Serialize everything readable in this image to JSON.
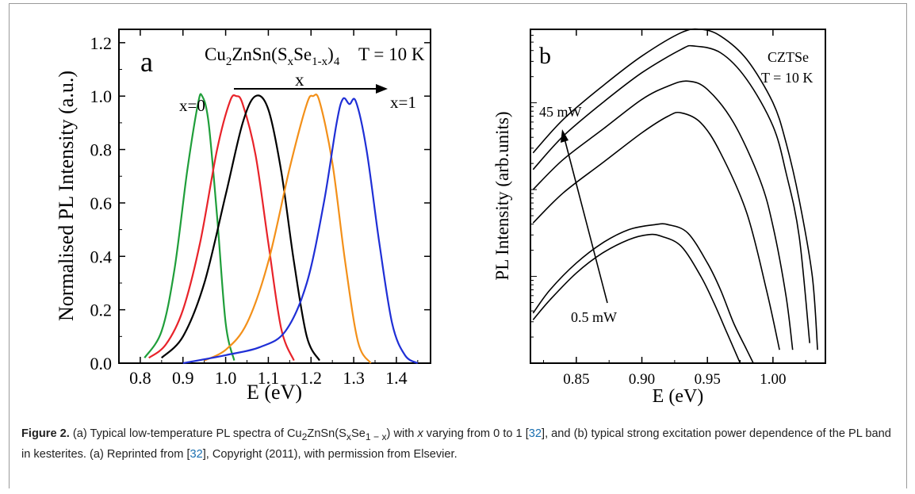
{
  "chart_data": [
    {
      "type": "line",
      "panel_label": "a",
      "title": "Cu2ZnSn(SxSe1-x)4",
      "annotation_temp": "T = 10 K",
      "arrow_label": "x",
      "annotations": [
        "x=0",
        "x=1"
      ],
      "xlabel": "E (eV)",
      "ylabel": "Normalised PL Intensity (a.u.)",
      "xlim": [
        0.75,
        1.48
      ],
      "ylim": [
        0.0,
        1.25
      ],
      "xticks": [
        0.8,
        0.9,
        1.0,
        1.1,
        1.2,
        1.3,
        1.4
      ],
      "yticks": [
        0.0,
        0.2,
        0.4,
        0.6,
        0.8,
        1.0,
        1.2
      ],
      "series": [
        {
          "color": "#1f9e3a",
          "x": [
            0.81,
            0.85,
            0.88,
            0.91,
            0.935,
            0.945,
            0.96,
            0.98,
            1.0,
            1.02
          ],
          "y": [
            0.02,
            0.12,
            0.35,
            0.72,
            0.97,
            1.0,
            0.9,
            0.55,
            0.15,
            0.01
          ]
        },
        {
          "color": "#e8232a",
          "x": [
            0.82,
            0.86,
            0.9,
            0.94,
            0.98,
            1.01,
            1.025,
            1.04,
            1.07,
            1.1,
            1.13,
            1.16
          ],
          "y": [
            0.02,
            0.07,
            0.2,
            0.45,
            0.8,
            0.98,
            1.0,
            0.97,
            0.78,
            0.45,
            0.13,
            0.01
          ]
        },
        {
          "color": "#000000",
          "x": [
            0.85,
            0.9,
            0.95,
            1.0,
            1.04,
            1.07,
            1.1,
            1.13,
            1.16,
            1.19,
            1.22
          ],
          "y": [
            0.02,
            0.1,
            0.3,
            0.63,
            0.9,
            1.0,
            0.95,
            0.72,
            0.38,
            0.1,
            0.01
          ]
        },
        {
          "color": "#f39019",
          "x": [
            0.95,
            1.0,
            1.05,
            1.1,
            1.15,
            1.19,
            1.205,
            1.22,
            1.25,
            1.28,
            1.31,
            1.34
          ],
          "y": [
            0.01,
            0.05,
            0.15,
            0.38,
            0.73,
            0.97,
            1.0,
            0.98,
            0.75,
            0.38,
            0.08,
            0.0
          ]
        },
        {
          "color": "#1f2fd6",
          "x": [
            0.9,
            1.0,
            1.08,
            1.14,
            1.19,
            1.23,
            1.26,
            1.275,
            1.29,
            1.305,
            1.33,
            1.36,
            1.39,
            1.42,
            1.45
          ],
          "y": [
            0.0,
            0.03,
            0.06,
            0.12,
            0.3,
            0.6,
            0.9,
            0.99,
            0.97,
            0.98,
            0.8,
            0.45,
            0.15,
            0.03,
            0.0
          ]
        }
      ]
    },
    {
      "type": "line",
      "panel_label": "b",
      "annotation_material": "CZTSe",
      "annotation_temp": "T = 10 K",
      "arrow_top_label": "45 mW",
      "arrow_bottom_label": "0.5 mW",
      "xlabel": "E (eV)",
      "ylabel": "PL Intensity (arb.units)",
      "xlim": [
        0.815,
        1.04
      ],
      "xticks": [
        0.85,
        0.9,
        0.95,
        1.0
      ],
      "y_scale": "log",
      "ylim": [
        0,
        10
      ],
      "y_tick_labels": "none",
      "series": [
        {
          "x": [
            0.817,
            0.84,
            0.87,
            0.9,
            0.93,
            0.945,
            0.96,
            0.98,
            1.0,
            1.01,
            1.02,
            1.03,
            1.034
          ],
          "y": [
            6.3,
            7.3,
            8.3,
            9.2,
            9.9,
            10.0,
            9.8,
            9.1,
            7.8,
            6.6,
            4.9,
            2.6,
            0.4
          ]
        },
        {
          "x": [
            0.817,
            0.84,
            0.87,
            0.9,
            0.93,
            0.94,
            0.96,
            0.98,
            1.0,
            1.01,
            1.02,
            1.028
          ],
          "y": [
            5.8,
            6.8,
            7.8,
            8.7,
            9.4,
            9.5,
            9.3,
            8.5,
            7.1,
            5.7,
            3.8,
            0.6
          ]
        },
        {
          "x": [
            0.817,
            0.84,
            0.87,
            0.9,
            0.92,
            0.935,
            0.95,
            0.97,
            0.99,
            1.0,
            1.01,
            1.015
          ],
          "y": [
            5.2,
            6.1,
            7.0,
            7.9,
            8.3,
            8.45,
            8.2,
            7.2,
            5.5,
            4.1,
            2.0,
            0.4
          ]
        },
        {
          "x": [
            0.817,
            0.84,
            0.87,
            0.9,
            0.92,
            0.93,
            0.945,
            0.96,
            0.98,
            0.995,
            1.005
          ],
          "y": [
            4.2,
            5.1,
            6.0,
            6.9,
            7.4,
            7.5,
            7.2,
            6.3,
            4.5,
            2.2,
            0.4
          ]
        },
        {
          "x": [
            0.817,
            0.83,
            0.85,
            0.87,
            0.89,
            0.91,
            0.92,
            0.935,
            0.95,
            0.96,
            0.97,
            0.98,
            0.985
          ],
          "y": [
            1.5,
            2.2,
            3.0,
            3.6,
            4.0,
            4.15,
            4.15,
            3.9,
            3.0,
            2.2,
            1.2,
            0.4,
            0.0
          ]
        },
        {
          "x": [
            0.817,
            0.83,
            0.85,
            0.87,
            0.89,
            0.905,
            0.915,
            0.93,
            0.945,
            0.955,
            0.965,
            0.975
          ],
          "y": [
            1.3,
            1.9,
            2.7,
            3.3,
            3.7,
            3.85,
            3.8,
            3.5,
            2.6,
            1.8,
            0.9,
            0.0
          ]
        }
      ]
    }
  ],
  "caption": {
    "label": "Figure 2.",
    "text_1": " (a) Typical low-temperature PL spectra of Cu",
    "text_2": "ZnSn(S",
    "text_3": "Se",
    "text_4": ") with ",
    "text_5": " varying from 0 to 1 [",
    "ref_1": "32",
    "text_6": "], and (b) typical strong excitation power dependence of the PL band in kesterites. (a) Reprinted from [",
    "ref_2": "32",
    "text_7": "], Copyright (2011), with permission from Elsevier.",
    "sub_2": "2",
    "sub_x": "x",
    "sub_1mx": "1 − x",
    "var_x": "x"
  }
}
